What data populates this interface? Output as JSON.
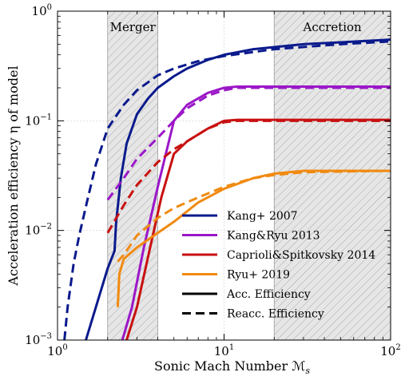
{
  "chart_data": {
    "type": "line",
    "xlabel": "Sonic Mach Number  ℳ",
    "xlabel_sub": "s",
    "ylabel": "Acceleration efficiency  η  of model",
    "xscale": "log",
    "yscale": "log",
    "xlim": [
      1,
      100
    ],
    "ylim": [
      0.001,
      1
    ],
    "x_ticks": [
      {
        "value": 1,
        "base": "10",
        "exp": "0"
      },
      {
        "value": 10,
        "base": "10",
        "exp": "1"
      },
      {
        "value": 100,
        "base": "10",
        "exp": "2"
      }
    ],
    "y_ticks": [
      {
        "value": 0.001,
        "base": "10",
        "exp": "−3"
      },
      {
        "value": 0.01,
        "base": "10",
        "exp": "−2"
      },
      {
        "value": 0.1,
        "base": "10",
        "exp": "−1"
      },
      {
        "value": 1,
        "base": "10",
        "exp": "0"
      }
    ],
    "regions": [
      {
        "label": "Merger",
        "xmin": 2.0,
        "xmax": 4.0
      },
      {
        "label": "Accretion",
        "xmin": 20,
        "xmax": 100
      }
    ],
    "series": [
      {
        "name": "Kang+ 2007",
        "model": "Kang+ 2007",
        "kind": "Acc. Efficiency",
        "color": "#0a1a8c",
        "dashed": false,
        "points": [
          [
            1.48,
            0.001
          ],
          [
            1.7,
            0.002
          ],
          [
            2.0,
            0.0045
          ],
          [
            2.2,
            0.0065
          ],
          [
            2.25,
            0.012
          ],
          [
            2.4,
            0.03
          ],
          [
            2.6,
            0.062
          ],
          [
            3.0,
            0.115
          ],
          [
            3.5,
            0.16
          ],
          [
            4.0,
            0.2
          ],
          [
            5,
            0.255
          ],
          [
            6,
            0.3
          ],
          [
            8,
            0.36
          ],
          [
            10,
            0.4
          ],
          [
            15,
            0.45
          ],
          [
            20,
            0.47
          ],
          [
            30,
            0.5
          ],
          [
            50,
            0.52
          ],
          [
            100,
            0.55
          ]
        ]
      },
      {
        "name": "Kang+ 2007",
        "model": "Kang+ 2007",
        "kind": "Reacc. Efficiency",
        "color": "#0a1a8c",
        "dashed": true,
        "points": [
          [
            1.1,
            0.001
          ],
          [
            1.15,
            0.002
          ],
          [
            1.25,
            0.005
          ],
          [
            1.35,
            0.009
          ],
          [
            1.5,
            0.018
          ],
          [
            1.7,
            0.04
          ],
          [
            2.0,
            0.085
          ],
          [
            2.5,
            0.14
          ],
          [
            3.0,
            0.19
          ],
          [
            4.0,
            0.26
          ],
          [
            5,
            0.3
          ],
          [
            7,
            0.35
          ],
          [
            10,
            0.39
          ],
          [
            20,
            0.45
          ],
          [
            50,
            0.5
          ],
          [
            100,
            0.53
          ]
        ]
      },
      {
        "name": "Kang&Ryu 2013",
        "model": "Kang&Ryu 2013",
        "kind": "Acc. Efficiency",
        "color": "#9b17c8",
        "dashed": false,
        "points": [
          [
            2.45,
            0.001
          ],
          [
            2.8,
            0.002
          ],
          [
            3.3,
            0.007
          ],
          [
            4.0,
            0.025
          ],
          [
            5.0,
            0.1
          ],
          [
            6,
            0.14
          ],
          [
            8,
            0.18
          ],
          [
            10,
            0.2
          ],
          [
            12,
            0.205
          ],
          [
            100,
            0.205
          ]
        ]
      },
      {
        "name": "Kang&Ryu 2013",
        "model": "Kang&Ryu 2013",
        "kind": "Reacc. Efficiency",
        "color": "#9b17c8",
        "dashed": true,
        "points": [
          [
            2.0,
            0.019
          ],
          [
            2.5,
            0.03
          ],
          [
            3.0,
            0.045
          ],
          [
            4.0,
            0.07
          ],
          [
            5.0,
            0.1
          ],
          [
            6,
            0.13
          ],
          [
            8,
            0.17
          ],
          [
            10,
            0.19
          ],
          [
            12,
            0.2
          ],
          [
            100,
            0.2
          ]
        ]
      },
      {
        "name": "Caprioli&Spitkovsky 2014",
        "model": "Caprioli&Spitkovsky 2014",
        "kind": "Acc. Efficiency",
        "color": "#c81010",
        "dashed": false,
        "points": [
          [
            2.6,
            0.001
          ],
          [
            3.0,
            0.002
          ],
          [
            3.6,
            0.007
          ],
          [
            4.2,
            0.02
          ],
          [
            5.0,
            0.05
          ],
          [
            6,
            0.065
          ],
          [
            8,
            0.085
          ],
          [
            10,
            0.1
          ],
          [
            12,
            0.102
          ],
          [
            100,
            0.102
          ]
        ]
      },
      {
        "name": "Caprioli&Spitkovsky 2014",
        "model": "Caprioli&Spitkovsky 2014",
        "kind": "Reacc. Efficiency",
        "color": "#c81010",
        "dashed": true,
        "points": [
          [
            2.0,
            0.0095
          ],
          [
            2.5,
            0.017
          ],
          [
            3.0,
            0.026
          ],
          [
            4.0,
            0.042
          ],
          [
            5.0,
            0.055
          ],
          [
            6,
            0.065
          ],
          [
            8,
            0.085
          ],
          [
            10,
            0.097
          ],
          [
            12,
            0.1
          ],
          [
            100,
            0.1
          ]
        ]
      },
      {
        "name": "Ryu+ 2019",
        "model": "Ryu+ 2019",
        "kind": "Acc. Efficiency",
        "color": "#f08a10",
        "dashed": false,
        "points": [
          [
            2.3,
            0.002
          ],
          [
            2.35,
            0.004
          ],
          [
            2.5,
            0.0055
          ],
          [
            3.0,
            0.007
          ],
          [
            4.0,
            0.0095
          ],
          [
            5.0,
            0.012
          ],
          [
            7,
            0.018
          ],
          [
            10,
            0.024
          ],
          [
            15,
            0.03
          ],
          [
            20,
            0.033
          ],
          [
            30,
            0.035
          ],
          [
            100,
            0.035
          ]
        ]
      },
      {
        "name": "Ryu+ 2019",
        "model": "Ryu+ 2019",
        "kind": "Reacc. Efficiency",
        "color": "#f08a10",
        "dashed": true,
        "points": [
          [
            2.3,
            0.0052
          ],
          [
            2.5,
            0.006
          ],
          [
            3.0,
            0.009
          ],
          [
            4.0,
            0.013
          ],
          [
            5.0,
            0.016
          ],
          [
            7,
            0.02
          ],
          [
            10,
            0.025
          ],
          [
            15,
            0.03
          ],
          [
            20,
            0.032
          ],
          [
            30,
            0.034
          ],
          [
            100,
            0.035
          ]
        ]
      }
    ],
    "legend": {
      "placement": "lower-right",
      "entries": [
        {
          "label": "Kang+ 2007",
          "color": "#0a1a8c",
          "dashed": false
        },
        {
          "label": "Kang&Ryu 2013",
          "color": "#9b17c8",
          "dashed": false
        },
        {
          "label": "Caprioli&Spitkovsky 2014",
          "color": "#c81010",
          "dashed": false
        },
        {
          "label": "Ryu+ 2019",
          "color": "#f08a10",
          "dashed": false
        },
        {
          "label": "Acc. Efficiency",
          "color": "#000000",
          "dashed": false
        },
        {
          "label": "Reacc. Efficiency",
          "color": "#000000",
          "dashed": true
        }
      ]
    }
  }
}
